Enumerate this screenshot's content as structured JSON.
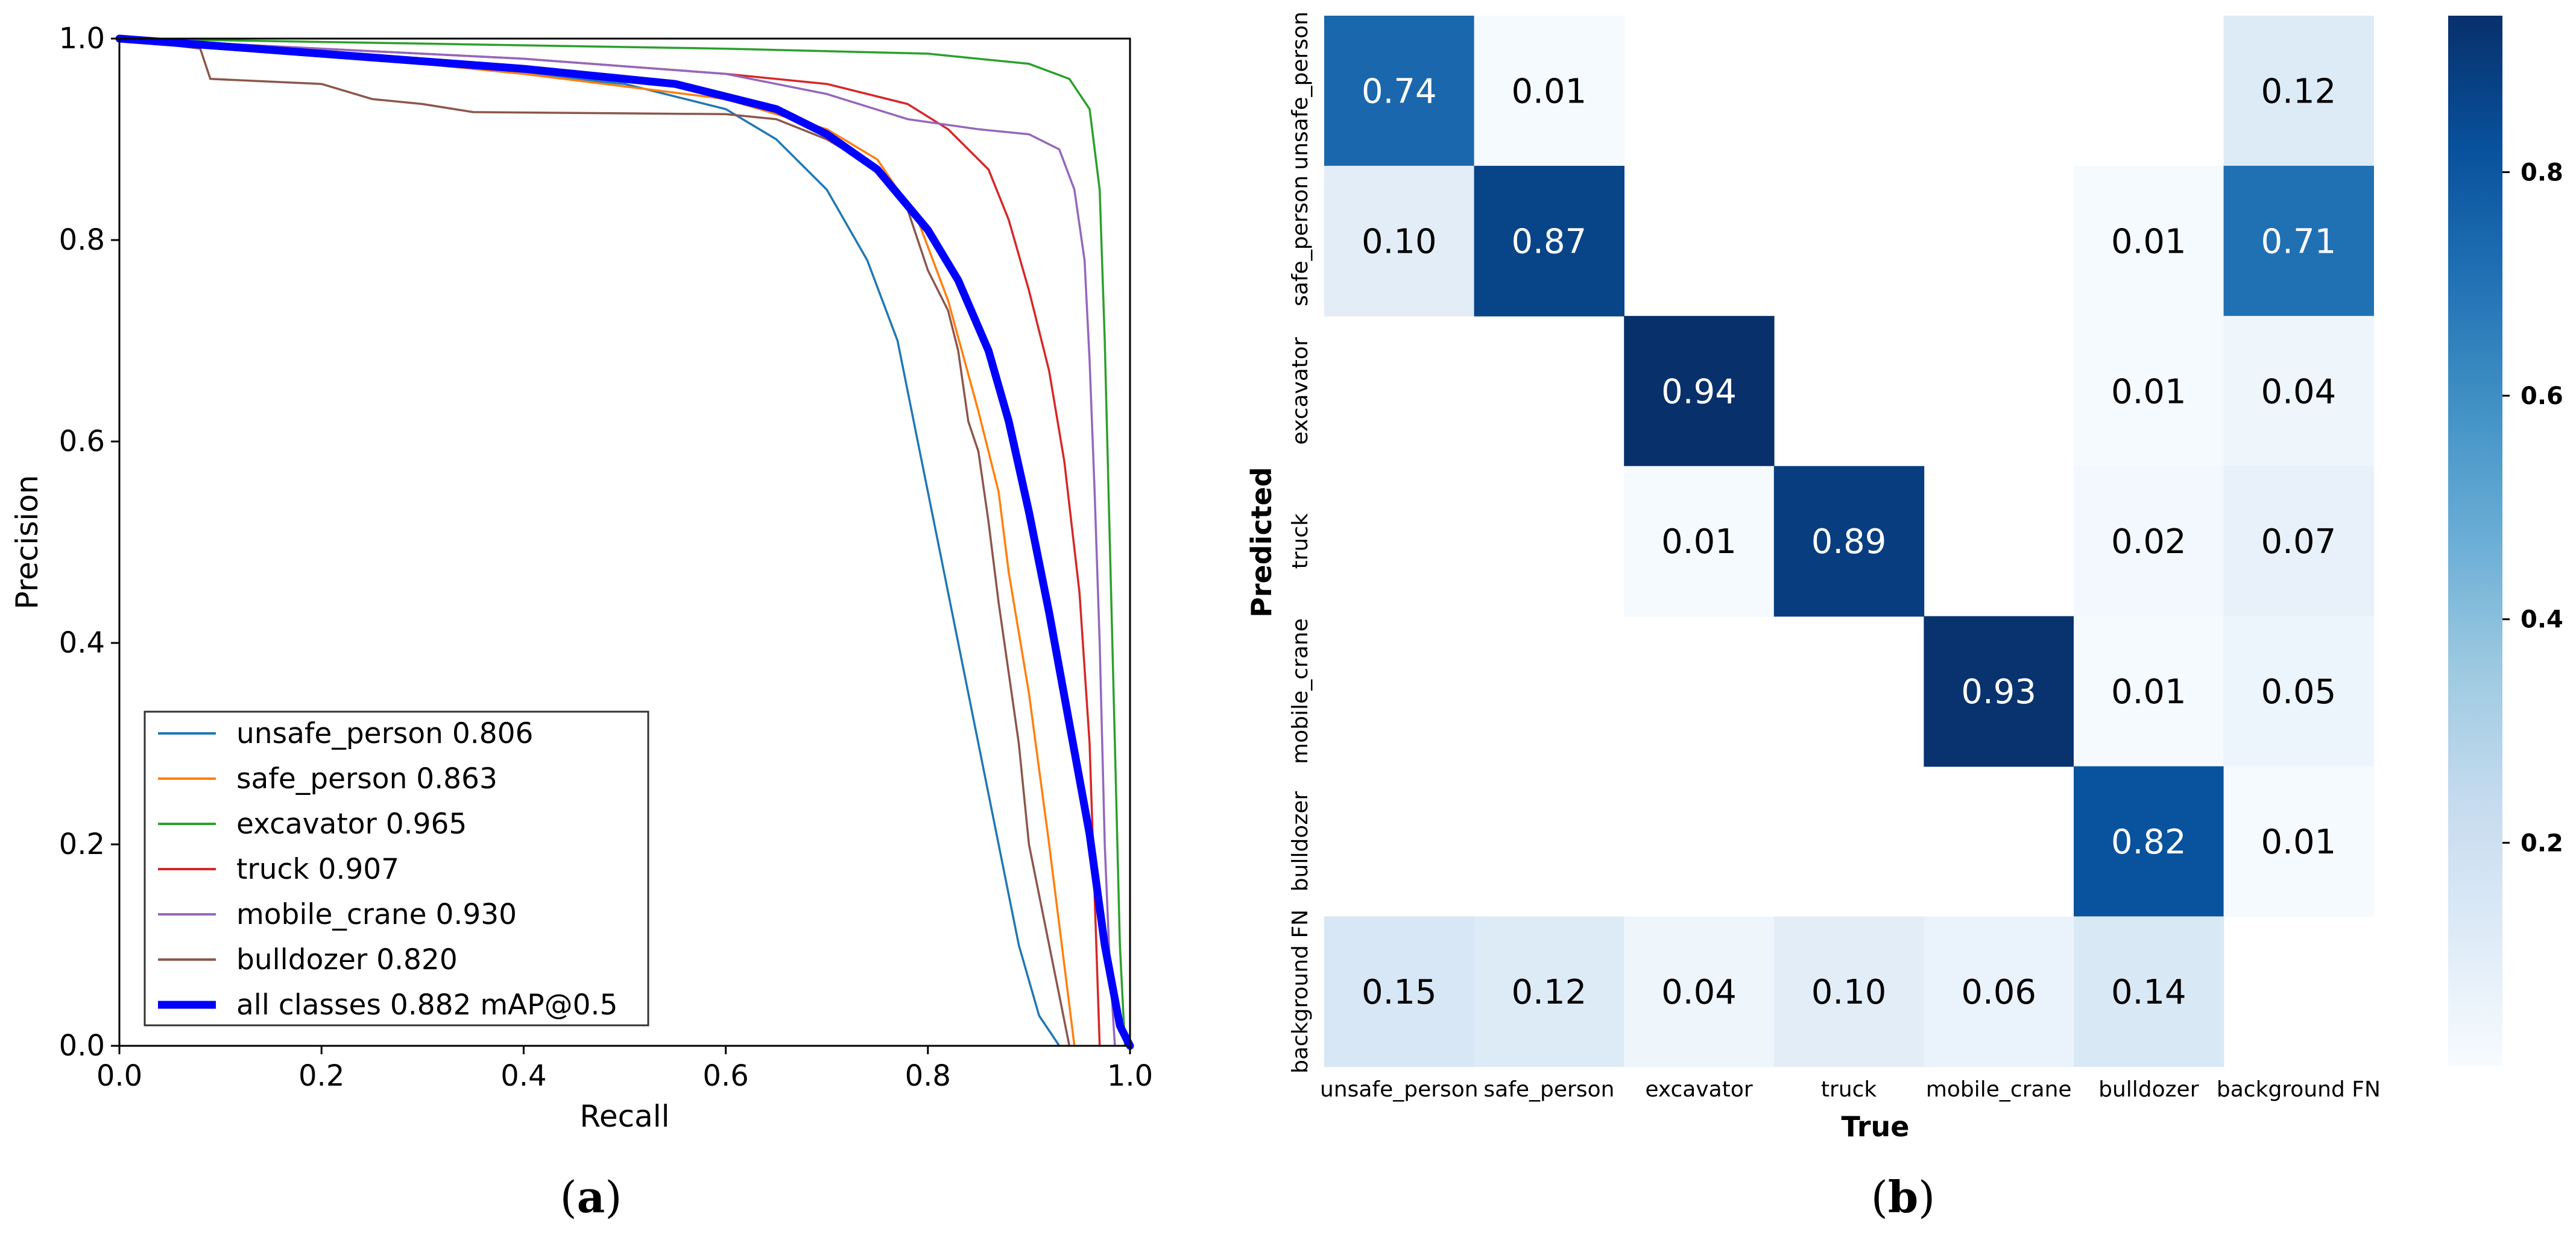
{
  "chart_data": [
    {
      "type": "line",
      "panel_label": "(a)",
      "panel_letter": "a",
      "xlabel": "Recall",
      "ylabel": "Precision",
      "xlim": [
        0.0,
        1.0
      ],
      "ylim": [
        0.0,
        1.0
      ],
      "xticks": [
        "0.0",
        "0.2",
        "0.4",
        "0.6",
        "0.8",
        "1.0"
      ],
      "yticks": [
        "0.0",
        "0.2",
        "0.4",
        "0.6",
        "0.8",
        "1.0"
      ],
      "legend_position": "lower-left",
      "series": [
        {
          "name": "unsafe_person 0.806",
          "color": "#1f77b4",
          "width": "thin",
          "points": [
            [
              0,
              1
            ],
            [
              0.1,
              0.99
            ],
            [
              0.3,
              0.975
            ],
            [
              0.5,
              0.955
            ],
            [
              0.6,
              0.93
            ],
            [
              0.65,
              0.9
            ],
            [
              0.7,
              0.85
            ],
            [
              0.74,
              0.78
            ],
            [
              0.77,
              0.7
            ],
            [
              0.79,
              0.6
            ],
            [
              0.81,
              0.5
            ],
            [
              0.83,
              0.4
            ],
            [
              0.85,
              0.3
            ],
            [
              0.87,
              0.2
            ],
            [
              0.89,
              0.1
            ],
            [
              0.91,
              0.03
            ],
            [
              0.93,
              0
            ]
          ]
        },
        {
          "name": "safe_person 0.863",
          "color": "#ff7f0e",
          "width": "thin",
          "points": [
            [
              0,
              1
            ],
            [
              0.2,
              0.985
            ],
            [
              0.4,
              0.965
            ],
            [
              0.6,
              0.94
            ],
            [
              0.7,
              0.91
            ],
            [
              0.75,
              0.88
            ],
            [
              0.79,
              0.82
            ],
            [
              0.82,
              0.74
            ],
            [
              0.85,
              0.63
            ],
            [
              0.87,
              0.55
            ],
            [
              0.88,
              0.47
            ],
            [
              0.9,
              0.35
            ],
            [
              0.92,
              0.2
            ],
            [
              0.935,
              0.08
            ],
            [
              0.945,
              0
            ]
          ]
        },
        {
          "name": "excavator 0.965",
          "color": "#2ca02c",
          "width": "thin",
          "points": [
            [
              0,
              1
            ],
            [
              0.3,
              0.995
            ],
            [
              0.6,
              0.99
            ],
            [
              0.8,
              0.985
            ],
            [
              0.9,
              0.975
            ],
            [
              0.94,
              0.96
            ],
            [
              0.96,
              0.93
            ],
            [
              0.97,
              0.85
            ],
            [
              0.975,
              0.7
            ],
            [
              0.98,
              0.5
            ],
            [
              0.985,
              0.3
            ],
            [
              0.99,
              0.1
            ],
            [
              0.995,
              0
            ]
          ]
        },
        {
          "name": "truck 0.907",
          "color": "#d62728",
          "width": "thin",
          "points": [
            [
              0,
              1
            ],
            [
              0.2,
              0.99
            ],
            [
              0.4,
              0.98
            ],
            [
              0.6,
              0.965
            ],
            [
              0.7,
              0.955
            ],
            [
              0.78,
              0.935
            ],
            [
              0.82,
              0.91
            ],
            [
              0.86,
              0.87
            ],
            [
              0.88,
              0.82
            ],
            [
              0.9,
              0.75
            ],
            [
              0.92,
              0.67
            ],
            [
              0.935,
              0.58
            ],
            [
              0.95,
              0.45
            ],
            [
              0.96,
              0.3
            ],
            [
              0.965,
              0.15
            ],
            [
              0.97,
              0
            ]
          ]
        },
        {
          "name": "mobile_crane 0.930",
          "color": "#9467bd",
          "width": "thin",
          "points": [
            [
              0,
              1
            ],
            [
              0.2,
              0.99
            ],
            [
              0.4,
              0.98
            ],
            [
              0.6,
              0.965
            ],
            [
              0.7,
              0.945
            ],
            [
              0.78,
              0.92
            ],
            [
              0.85,
              0.91
            ],
            [
              0.9,
              0.905
            ],
            [
              0.93,
              0.89
            ],
            [
              0.945,
              0.85
            ],
            [
              0.955,
              0.78
            ],
            [
              0.96,
              0.68
            ],
            [
              0.965,
              0.55
            ],
            [
              0.97,
              0.4
            ],
            [
              0.975,
              0.2
            ],
            [
              0.98,
              0.08
            ],
            [
              0.985,
              0
            ]
          ]
        },
        {
          "name": "bulldozer 0.820",
          "color": "#8c564b",
          "width": "thin",
          "points": [
            [
              0,
              1
            ],
            [
              0.08,
              0.99
            ],
            [
              0.09,
              0.96
            ],
            [
              0.2,
              0.955
            ],
            [
              0.25,
              0.94
            ],
            [
              0.3,
              0.935
            ],
            [
              0.35,
              0.927
            ],
            [
              0.6,
              0.925
            ],
            [
              0.65,
              0.92
            ],
            [
              0.7,
              0.9
            ],
            [
              0.75,
              0.87
            ],
            [
              0.78,
              0.83
            ],
            [
              0.8,
              0.77
            ],
            [
              0.82,
              0.73
            ],
            [
              0.83,
              0.69
            ],
            [
              0.84,
              0.62
            ],
            [
              0.85,
              0.59
            ],
            [
              0.86,
              0.52
            ],
            [
              0.87,
              0.44
            ],
            [
              0.88,
              0.37
            ],
            [
              0.89,
              0.3
            ],
            [
              0.9,
              0.2
            ],
            [
              0.92,
              0.1
            ],
            [
              0.93,
              0.05
            ],
            [
              0.94,
              0
            ]
          ]
        },
        {
          "name": "all classes 0.882 mAP@0.5",
          "color": "#0000ff",
          "width": "thick",
          "points": [
            [
              0,
              1
            ],
            [
              0.2,
              0.985
            ],
            [
              0.4,
              0.97
            ],
            [
              0.55,
              0.955
            ],
            [
              0.65,
              0.93
            ],
            [
              0.7,
              0.905
            ],
            [
              0.75,
              0.87
            ],
            [
              0.8,
              0.81
            ],
            [
              0.83,
              0.76
            ],
            [
              0.86,
              0.69
            ],
            [
              0.88,
              0.62
            ],
            [
              0.9,
              0.53
            ],
            [
              0.92,
              0.43
            ],
            [
              0.94,
              0.32
            ],
            [
              0.96,
              0.21
            ],
            [
              0.975,
              0.1
            ],
            [
              0.99,
              0.02
            ],
            [
              1.0,
              0
            ]
          ]
        }
      ]
    },
    {
      "type": "heatmap",
      "panel_label": "(b)",
      "panel_letter": "b",
      "xlabel": "True",
      "ylabel": "Predicted",
      "row_labels": [
        "unsafe_person",
        "safe_person",
        "excavator",
        "truck",
        "mobile_crane",
        "bulldozer",
        "background FN"
      ],
      "col_labels": [
        "unsafe_person",
        "safe_person",
        "excavator",
        "truck",
        "mobile_crane",
        "bulldozer",
        "background FN"
      ],
      "cells": [
        [
          "0.74",
          "0.01",
          "",
          "",
          "",
          "",
          "0.12"
        ],
        [
          "0.10",
          "0.87",
          "",
          "",
          "",
          "0.01",
          "0.71"
        ],
        [
          "",
          "",
          "0.94",
          "",
          "",
          "0.01",
          "0.04"
        ],
        [
          "",
          "",
          "0.01",
          "0.89",
          "",
          "0.02",
          "0.07"
        ],
        [
          "",
          "",
          "",
          "",
          "0.93",
          "0.01",
          "0.05"
        ],
        [
          "",
          "",
          "",
          "",
          "",
          "0.82",
          "0.01"
        ],
        [
          "0.15",
          "0.12",
          "0.04",
          "0.10",
          "0.06",
          "0.14",
          ""
        ]
      ],
      "colorbar_range": [
        0.0,
        0.94
      ],
      "colorbar_ticks": [
        "0.2",
        "0.4",
        "0.6",
        "0.8"
      ],
      "colormap": "Blues"
    }
  ]
}
